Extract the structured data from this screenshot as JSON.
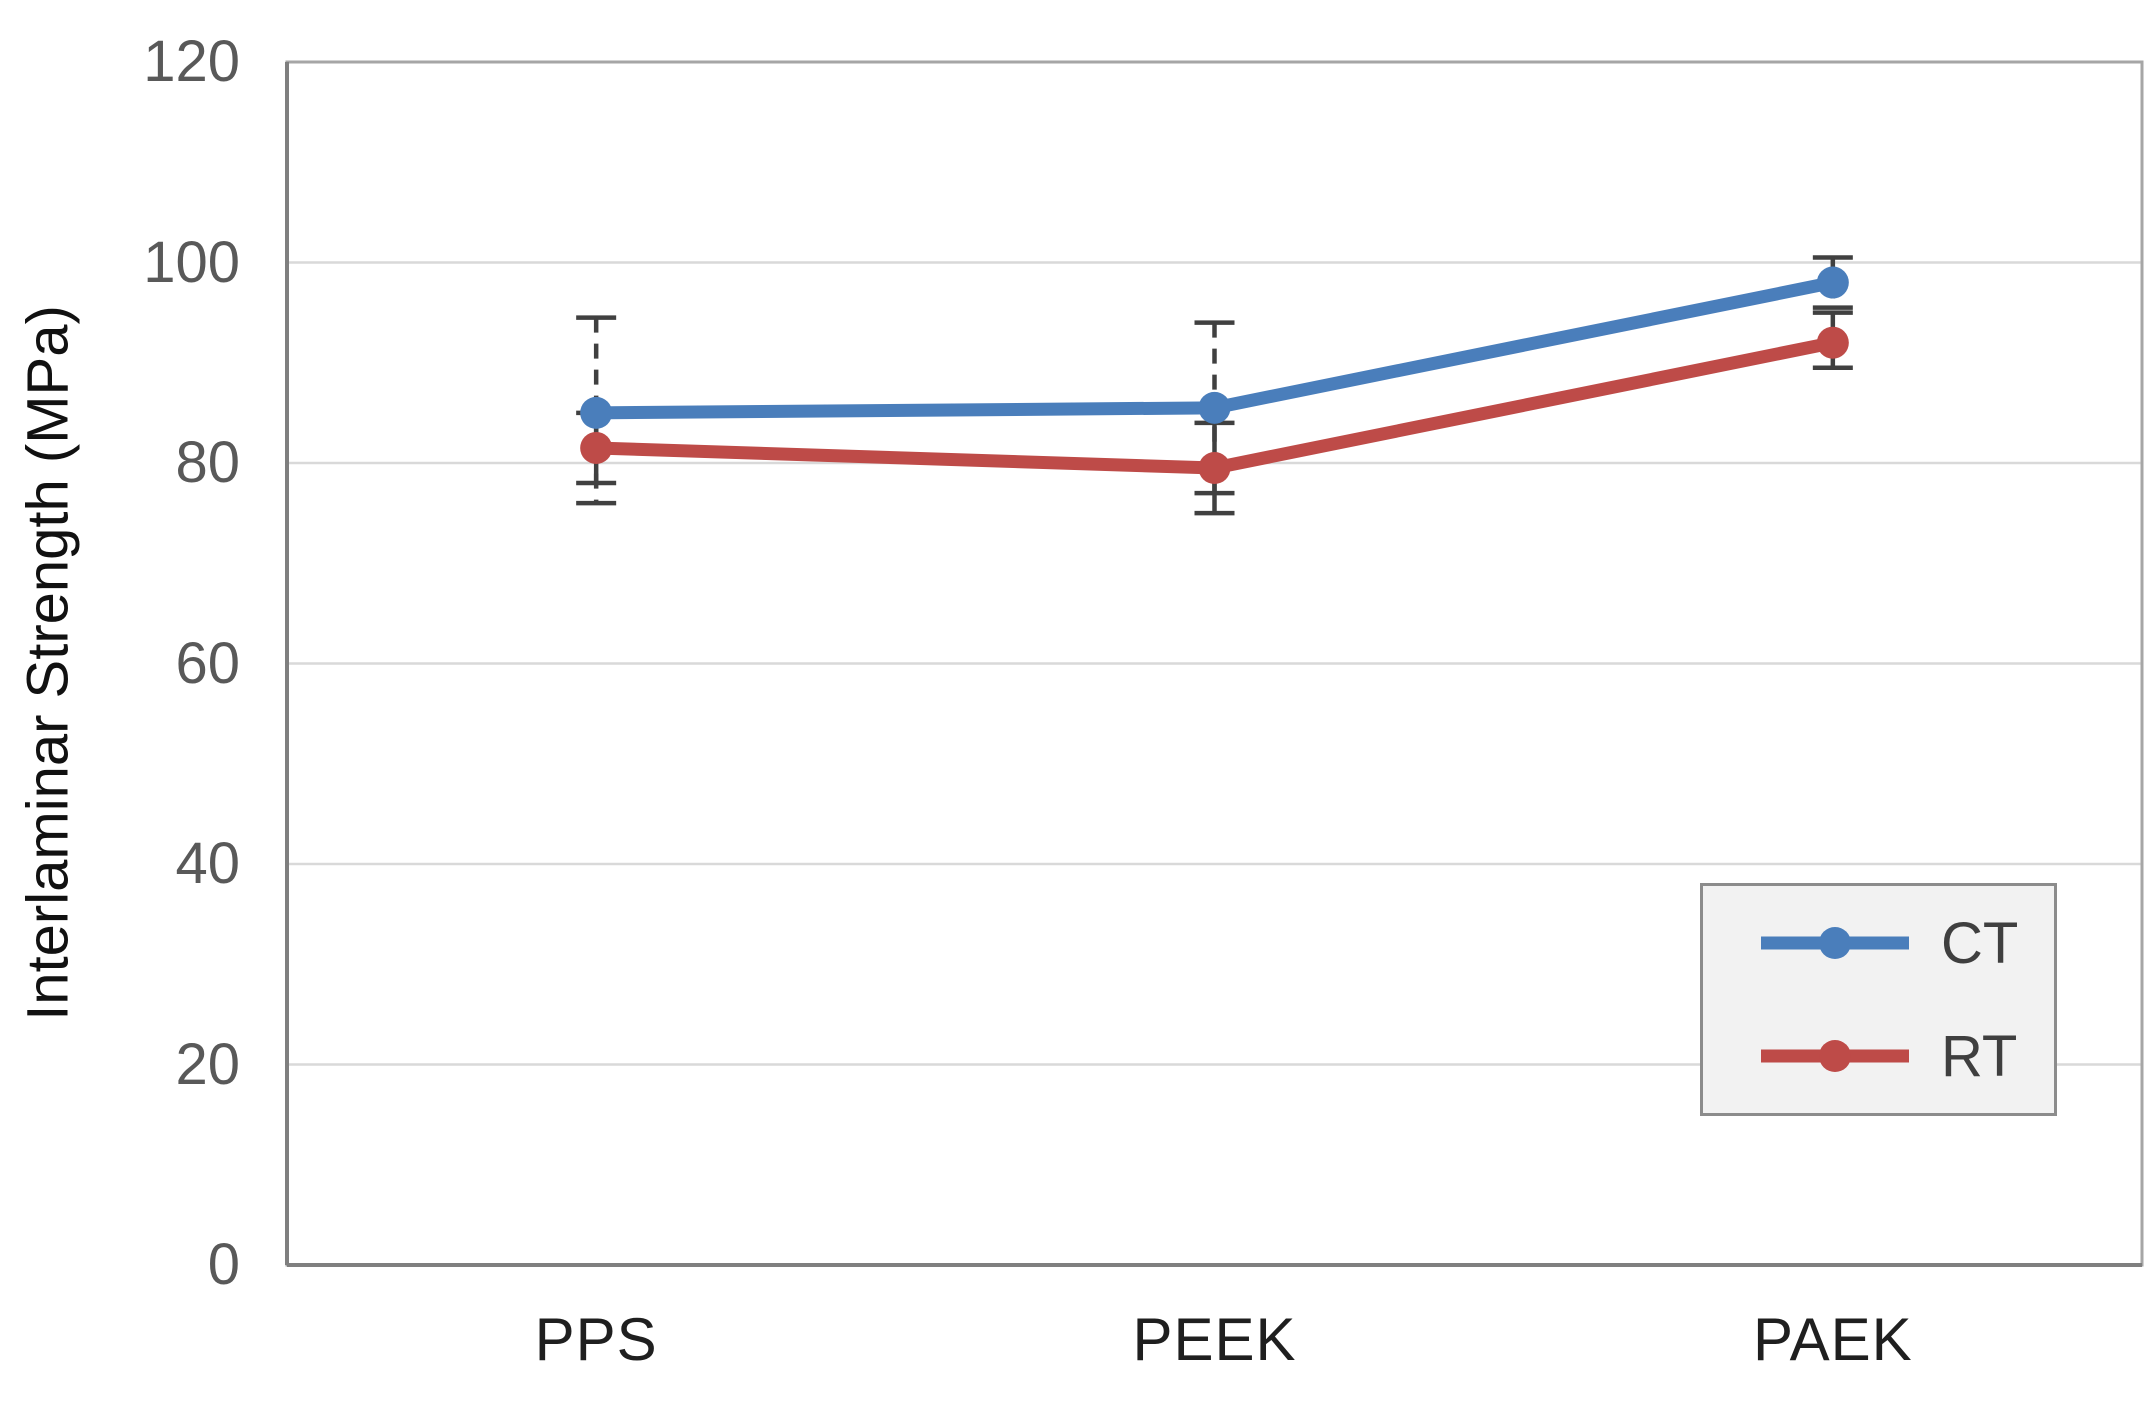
{
  "chart_data": {
    "type": "line",
    "title": "",
    "xlabel": "",
    "ylabel": "Interlaminar Strength (MPa)",
    "categories": [
      "PPS",
      "PEEK",
      "PAEK"
    ],
    "yticks": [
      120,
      100,
      80,
      60,
      40,
      20,
      0
    ],
    "ylim": [
      0,
      120
    ],
    "grid": true,
    "legend_position": "inside-bottom-right",
    "series": [
      {
        "name": "CT",
        "color": "#4A7EBB",
        "error_style": "dashed",
        "values": [
          85,
          85.5,
          98
        ],
        "error_plus": [
          9.5,
          8.5,
          2.5
        ],
        "error_minus": [
          9,
          8.5,
          2.5
        ]
      },
      {
        "name": "RT",
        "color": "#BE4B48",
        "error_style": "solid",
        "values": [
          81.5,
          79.5,
          92
        ],
        "error_plus": [
          3.5,
          4.5,
          3
        ],
        "error_minus": [
          3.5,
          4.5,
          2.5
        ]
      }
    ],
    "colors": {
      "gridline": "#d9d9d9",
      "plot_border": "#a6a6a6",
      "axis_line": "#7f7f7f",
      "error_bar": "#404040",
      "tick_label": "#595959"
    }
  }
}
